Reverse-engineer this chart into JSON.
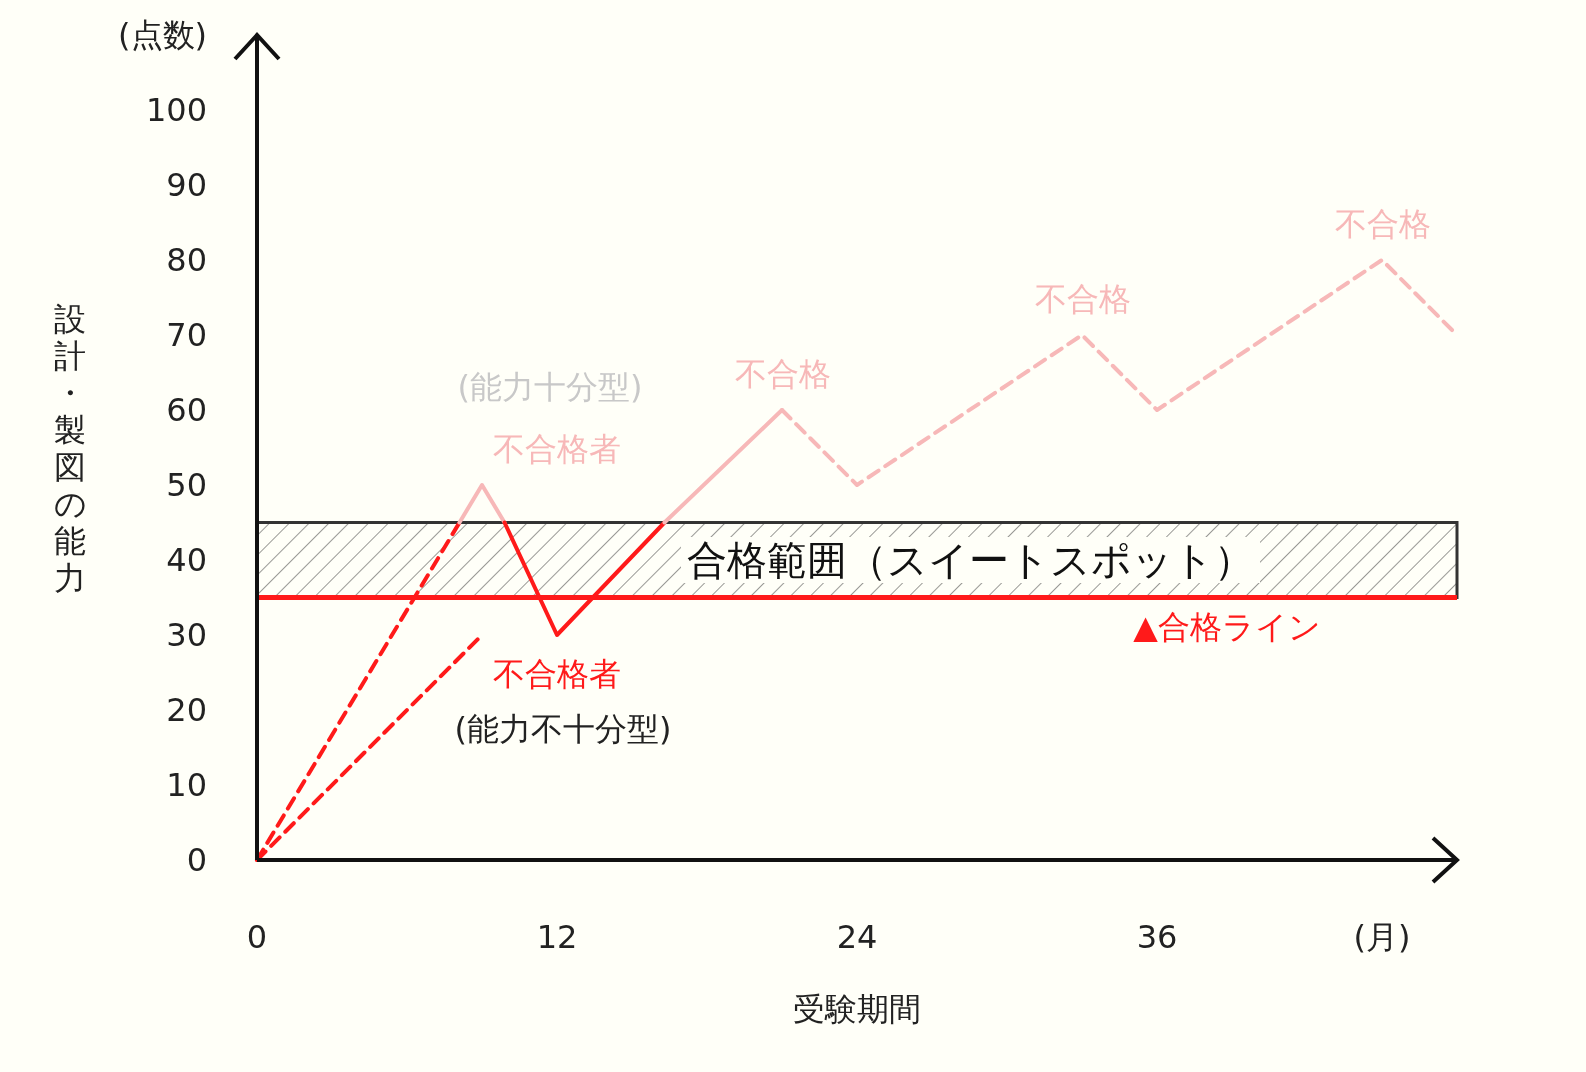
{
  "chart_data": {
    "type": "line",
    "xlabel": "受験期間",
    "ylabel": "設計・製図の能力",
    "xlim": [
      0,
      48
    ],
    "xticks": [
      0,
      12,
      24,
      36,
      {
        "value": 45,
        "label": "(月)"
      }
    ],
    "ylim": [
      0,
      110
    ],
    "yticks": [
      0,
      10,
      20,
      30,
      40,
      50,
      60,
      70,
      80,
      90,
      100,
      {
        "value": 110,
        "label": "(点数)"
      }
    ],
    "grid": false,
    "series": [
      {
        "x": [
          0,
          8.1
        ],
        "values": [
          0,
          45
        ],
        "color": "#ff1a1a",
        "line_style": "dashed"
      },
      {
        "x": [
          8.1,
          9,
          9.9
        ],
        "values": [
          45,
          50,
          45
        ],
        "color": "#f7b8b8",
        "line_style": "solid"
      },
      {
        "x": [
          9.9,
          12,
          16.3
        ],
        "values": [
          45,
          30,
          45
        ],
        "color": "#ff1a1a",
        "line_style": "solid"
      },
      {
        "x": [
          16.3,
          21
        ],
        "values": [
          45,
          60
        ],
        "color": "#f7b8b8",
        "line_style": "solid"
      },
      {
        "x": [
          21,
          24,
          33,
          36,
          45,
          48
        ],
        "values": [
          60,
          50,
          70,
          60,
          80,
          70
        ],
        "color": "#f7b8b8",
        "line_style": "dashed"
      },
      {
        "x": [
          0,
          9
        ],
        "values": [
          0,
          30
        ],
        "color": "#ff1a1a",
        "line_style": "dashed"
      }
    ],
    "bands": [
      {
        "axis": "y",
        "from": 35,
        "to": 45,
        "label": "合格範囲（スイートスポット）",
        "color": "#333333"
      }
    ],
    "ref_lines": [
      {
        "axis": "y",
        "value": 35,
        "label": "▲合格ライン",
        "color": "#ff1a1a",
        "line_style": "solid"
      }
    ],
    "annotations": [
      "(能力十分型)",
      "不合格者",
      "不合格",
      "不合格",
      "不合格",
      "不合格者",
      "(能力不十分型)"
    ]
  }
}
